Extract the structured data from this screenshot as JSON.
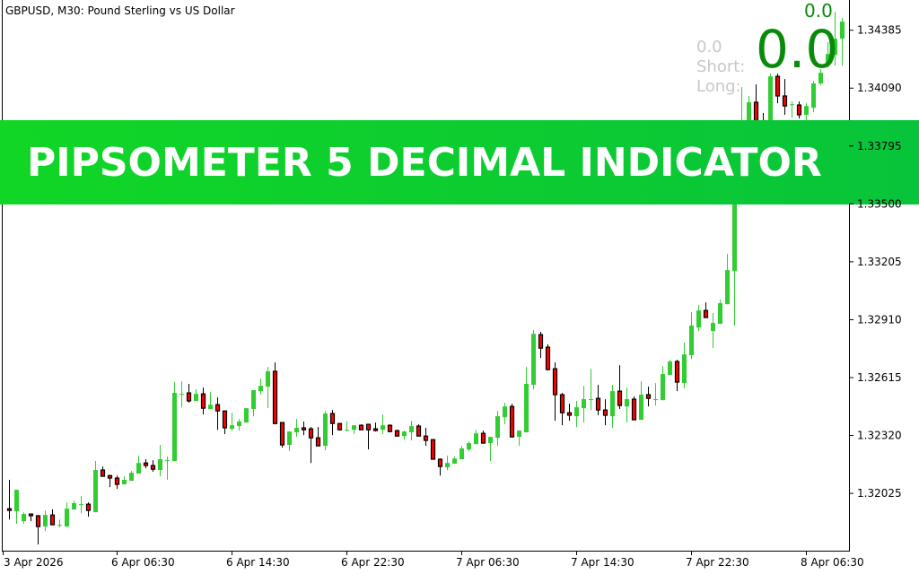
{
  "header": {
    "title": "GBPUSD, M30:  Pound Sterling vs US Dollar"
  },
  "indicator": {
    "value_small": "0.0",
    "value_big": "0.0",
    "value_gray": "0.0",
    "short_label": "Short:",
    "long_label": "Long:",
    "value_color": "#0a8a0a"
  },
  "banner": {
    "text": "PIPSOMETER 5 DECIMAL INDICATOR",
    "color": "#0bcf30"
  },
  "chart_data": {
    "type": "candlestick",
    "symbol": "GBPUSD",
    "timeframe": "M30",
    "ylim": [
      1.31733,
      1.34539
    ],
    "grid": false,
    "bull_color": "#32cd32",
    "bear_color": "#ff0000",
    "y_ticks": [
      "1.34385",
      "1.34090",
      "1.33795",
      "1.33500",
      "1.33205",
      "1.32910",
      "1.32615",
      "1.32320",
      "1.32025"
    ],
    "x_ticks": [
      {
        "label": "3 Apr 2026",
        "index": 0
      },
      {
        "label": "6 Apr 06:30",
        "index": 15
      },
      {
        "label": "6 Apr 14:30",
        "index": 31
      },
      {
        "label": "6 Apr 22:30",
        "index": 47
      },
      {
        "label": "7 Apr 06:30",
        "index": 63
      },
      {
        "label": "7 Apr 14:30",
        "index": 79
      },
      {
        "label": "7 Apr 22:30",
        "index": 95
      },
      {
        "label": "8 Apr 06:30",
        "index": 111
      }
    ],
    "ohlc": [
      [
        1.31947,
        1.32094,
        1.31892,
        1.31938
      ],
      [
        1.31934,
        1.32043,
        1.3187,
        1.32043
      ],
      [
        1.31883,
        1.31929,
        1.3187,
        1.3192
      ],
      [
        1.3192,
        1.3192,
        1.31883,
        1.31911
      ],
      [
        1.31911,
        1.31915,
        1.31765,
        1.31856
      ],
      [
        1.31856,
        1.31938,
        1.31833,
        1.31915
      ],
      [
        1.31915,
        1.31943,
        1.31865,
        1.31865
      ],
      [
        1.31865,
        1.31892,
        1.31851,
        1.31865
      ],
      [
        1.31856,
        1.31979,
        1.31856,
        1.31947
      ],
      [
        1.31943,
        1.31988,
        1.31943,
        1.31975
      ],
      [
        1.3197,
        1.32011,
        1.31924,
        1.3197
      ],
      [
        1.3197,
        1.31979,
        1.31906,
        1.31938
      ],
      [
        1.31929,
        1.3219,
        1.31929,
        1.32144
      ],
      [
        1.32144,
        1.32162,
        1.32112,
        1.32112
      ],
      [
        1.32116,
        1.32116,
        1.32057,
        1.32103
      ],
      [
        1.32103,
        1.32116,
        1.32048,
        1.32071
      ],
      [
        1.32071,
        1.32112,
        1.32071,
        1.32094
      ],
      [
        1.32089,
        1.32139,
        1.32089,
        1.3213
      ],
      [
        1.32126,
        1.32217,
        1.32126,
        1.3218
      ],
      [
        1.3218,
        1.32199,
        1.32153,
        1.32167
      ],
      [
        1.32167,
        1.32194,
        1.32135,
        1.32148
      ],
      [
        1.32144,
        1.32272,
        1.32112,
        1.32199
      ],
      [
        1.32194,
        1.32212,
        1.32094,
        1.32194
      ],
      [
        1.3219,
        1.32592,
        1.3219,
        1.32537
      ],
      [
        1.32532,
        1.32596,
        1.32464,
        1.32532
      ],
      [
        1.32537,
        1.32583,
        1.32487,
        1.32496
      ],
      [
        1.32496,
        1.32555,
        1.32496,
        1.32532
      ],
      [
        1.32532,
        1.32564,
        1.32427,
        1.32459
      ],
      [
        1.32455,
        1.32541,
        1.32455,
        1.32477
      ],
      [
        1.32477,
        1.32514,
        1.32349,
        1.32445
      ],
      [
        1.32445,
        1.32445,
        1.32327,
        1.32359
      ],
      [
        1.32354,
        1.32436,
        1.32345,
        1.32372
      ],
      [
        1.32368,
        1.32404,
        1.32345,
        1.32391
      ],
      [
        1.32386,
        1.32459,
        1.32386,
        1.32459
      ],
      [
        1.32455,
        1.32551,
        1.32418,
        1.32551
      ],
      [
        1.32546,
        1.3261,
        1.32528,
        1.32573
      ],
      [
        1.32569,
        1.32669,
        1.32459,
        1.32647
      ],
      [
        1.32647,
        1.32692,
        1.32377,
        1.32381
      ],
      [
        1.32386,
        1.32386,
        1.32258,
        1.32272
      ],
      [
        1.32272,
        1.3234,
        1.3224,
        1.3234
      ],
      [
        1.32336,
        1.32404,
        1.32313,
        1.32359
      ],
      [
        1.32359,
        1.32391,
        1.32322,
        1.32349
      ],
      [
        1.32354,
        1.32363,
        1.3218,
        1.32308
      ],
      [
        1.32308,
        1.32363,
        1.32267,
        1.32267
      ],
      [
        1.32267,
        1.32445,
        1.32244,
        1.32432
      ],
      [
        1.32432,
        1.3245,
        1.32322,
        1.32381
      ],
      [
        1.32381,
        1.32381,
        1.32345,
        1.32349
      ],
      [
        1.32349,
        1.32391,
        1.3234,
        1.32349
      ],
      [
        1.32349,
        1.32372,
        1.32327,
        1.32372
      ],
      [
        1.32372,
        1.32377,
        1.32349,
        1.32349
      ],
      [
        1.32377,
        1.32377,
        1.32249,
        1.32349
      ],
      [
        1.32354,
        1.32386,
        1.3234,
        1.32345
      ],
      [
        1.32349,
        1.32427,
        1.32327,
        1.32372
      ],
      [
        1.32372,
        1.32377,
        1.32336,
        1.3234
      ],
      [
        1.32345,
        1.32349,
        1.32317,
        1.32317
      ],
      [
        1.32317,
        1.32345,
        1.32299,
        1.3234
      ],
      [
        1.32336,
        1.32395,
        1.32295,
        1.32368
      ],
      [
        1.32368,
        1.32377,
        1.32317,
        1.32317
      ],
      [
        1.32317,
        1.32359,
        1.32267,
        1.32295
      ],
      [
        1.32299,
        1.32299,
        1.32199,
        1.32199
      ],
      [
        1.32199,
        1.32203,
        1.32116,
        1.32162
      ],
      [
        1.32158,
        1.32217,
        1.32144,
        1.3218
      ],
      [
        1.32176,
        1.32212,
        1.32176,
        1.32203
      ],
      [
        1.32199,
        1.32267,
        1.32199,
        1.32254
      ],
      [
        1.32249,
        1.3229,
        1.3224,
        1.32281
      ],
      [
        1.32276,
        1.32349,
        1.32276,
        1.32331
      ],
      [
        1.32331,
        1.32345,
        1.32281,
        1.32281
      ],
      [
        1.32281,
        1.32313,
        1.3219,
        1.32313
      ],
      [
        1.32308,
        1.32445,
        1.32267,
        1.32418
      ],
      [
        1.32413,
        1.32487,
        1.32377,
        1.32468
      ],
      [
        1.32468,
        1.32482,
        1.32308,
        1.32313
      ],
      [
        1.32313,
        1.32345,
        1.32267,
        1.32345
      ],
      [
        1.32336,
        1.32669,
        1.32336,
        1.32583
      ],
      [
        1.32578,
        1.32857,
        1.32555,
        1.32838
      ],
      [
        1.32834,
        1.32848,
        1.32715,
        1.32765
      ],
      [
        1.3277,
        1.32784,
        1.32651,
        1.32656
      ],
      [
        1.3266,
        1.32692,
        1.32395,
        1.32528
      ],
      [
        1.32528,
        1.32537,
        1.32372,
        1.32436
      ],
      [
        1.32436,
        1.32482,
        1.32395,
        1.32423
      ],
      [
        1.32418,
        1.32496,
        1.32363,
        1.32464
      ],
      [
        1.32459,
        1.32573,
        1.32386,
        1.32505
      ],
      [
        1.32505,
        1.3266,
        1.3245,
        1.32505
      ],
      [
        1.32509,
        1.32578,
        1.32423,
        1.3245
      ],
      [
        1.3245,
        1.32505,
        1.32372,
        1.32423
      ],
      [
        1.32418,
        1.32578,
        1.32359,
        1.32546
      ],
      [
        1.32546,
        1.32678,
        1.32455,
        1.32473
      ],
      [
        1.32468,
        1.32564,
        1.32386,
        1.32505
      ],
      [
        1.32505,
        1.32519,
        1.324,
        1.324
      ],
      [
        1.324,
        1.32596,
        1.324,
        1.32528
      ],
      [
        1.32528,
        1.32569,
        1.32468,
        1.32509
      ],
      [
        1.32505,
        1.32587,
        1.32473,
        1.32505
      ],
      [
        1.325,
        1.32674,
        1.325,
        1.32633
      ],
      [
        1.32628,
        1.32706,
        1.32628,
        1.32697
      ],
      [
        1.32697,
        1.32706,
        1.32546,
        1.32592
      ],
      [
        1.32587,
        1.32793,
        1.3256,
        1.32733
      ],
      [
        1.32729,
        1.32948,
        1.3271,
        1.3288
      ],
      [
        1.3287,
        1.32985,
        1.32852,
        1.32957
      ],
      [
        1.32957,
        1.32998,
        1.32921,
        1.32921
      ],
      [
        1.32852,
        1.32944,
        1.32765,
        1.32893
      ],
      [
        1.32889,
        1.33012,
        1.32889,
        1.32994
      ],
      [
        1.32989,
        1.33245,
        1.32989,
        1.33163
      ],
      [
        1.33158,
        1.33716,
        1.3288,
        1.3367
      ],
      [
        1.3367,
        1.34095,
        1.33624,
        1.33899
      ],
      [
        1.33853,
        1.3405,
        1.33807,
        1.34018
      ],
      [
        1.34018,
        1.34109,
        1.33739,
        1.33784
      ],
      [
        1.33899,
        1.33963,
        1.33807,
        1.33853
      ],
      [
        1.33853,
        1.34164,
        1.3383,
        1.3415
      ],
      [
        1.3415,
        1.34164,
        1.34013,
        1.3405
      ],
      [
        1.3405,
        1.34136,
        1.33954,
        1.33999
      ],
      [
        1.34008,
        1.34022,
        1.3394,
        1.34008
      ],
      [
        1.34004,
        1.34022,
        1.33935,
        1.33954
      ],
      [
        1.33954,
        1.34013,
        1.33899,
        1.33999
      ],
      [
        1.3399,
        1.34127,
        1.33967,
        1.34114
      ],
      [
        1.34114,
        1.34187,
        1.34104,
        1.34168
      ],
      [
        1.3421,
        1.34324,
        1.34196,
        1.34264
      ],
      [
        1.3426,
        1.34479,
        1.34205,
        1.34342
      ],
      [
        1.34342,
        1.34447,
        1.34205,
        1.34429
      ]
    ]
  }
}
